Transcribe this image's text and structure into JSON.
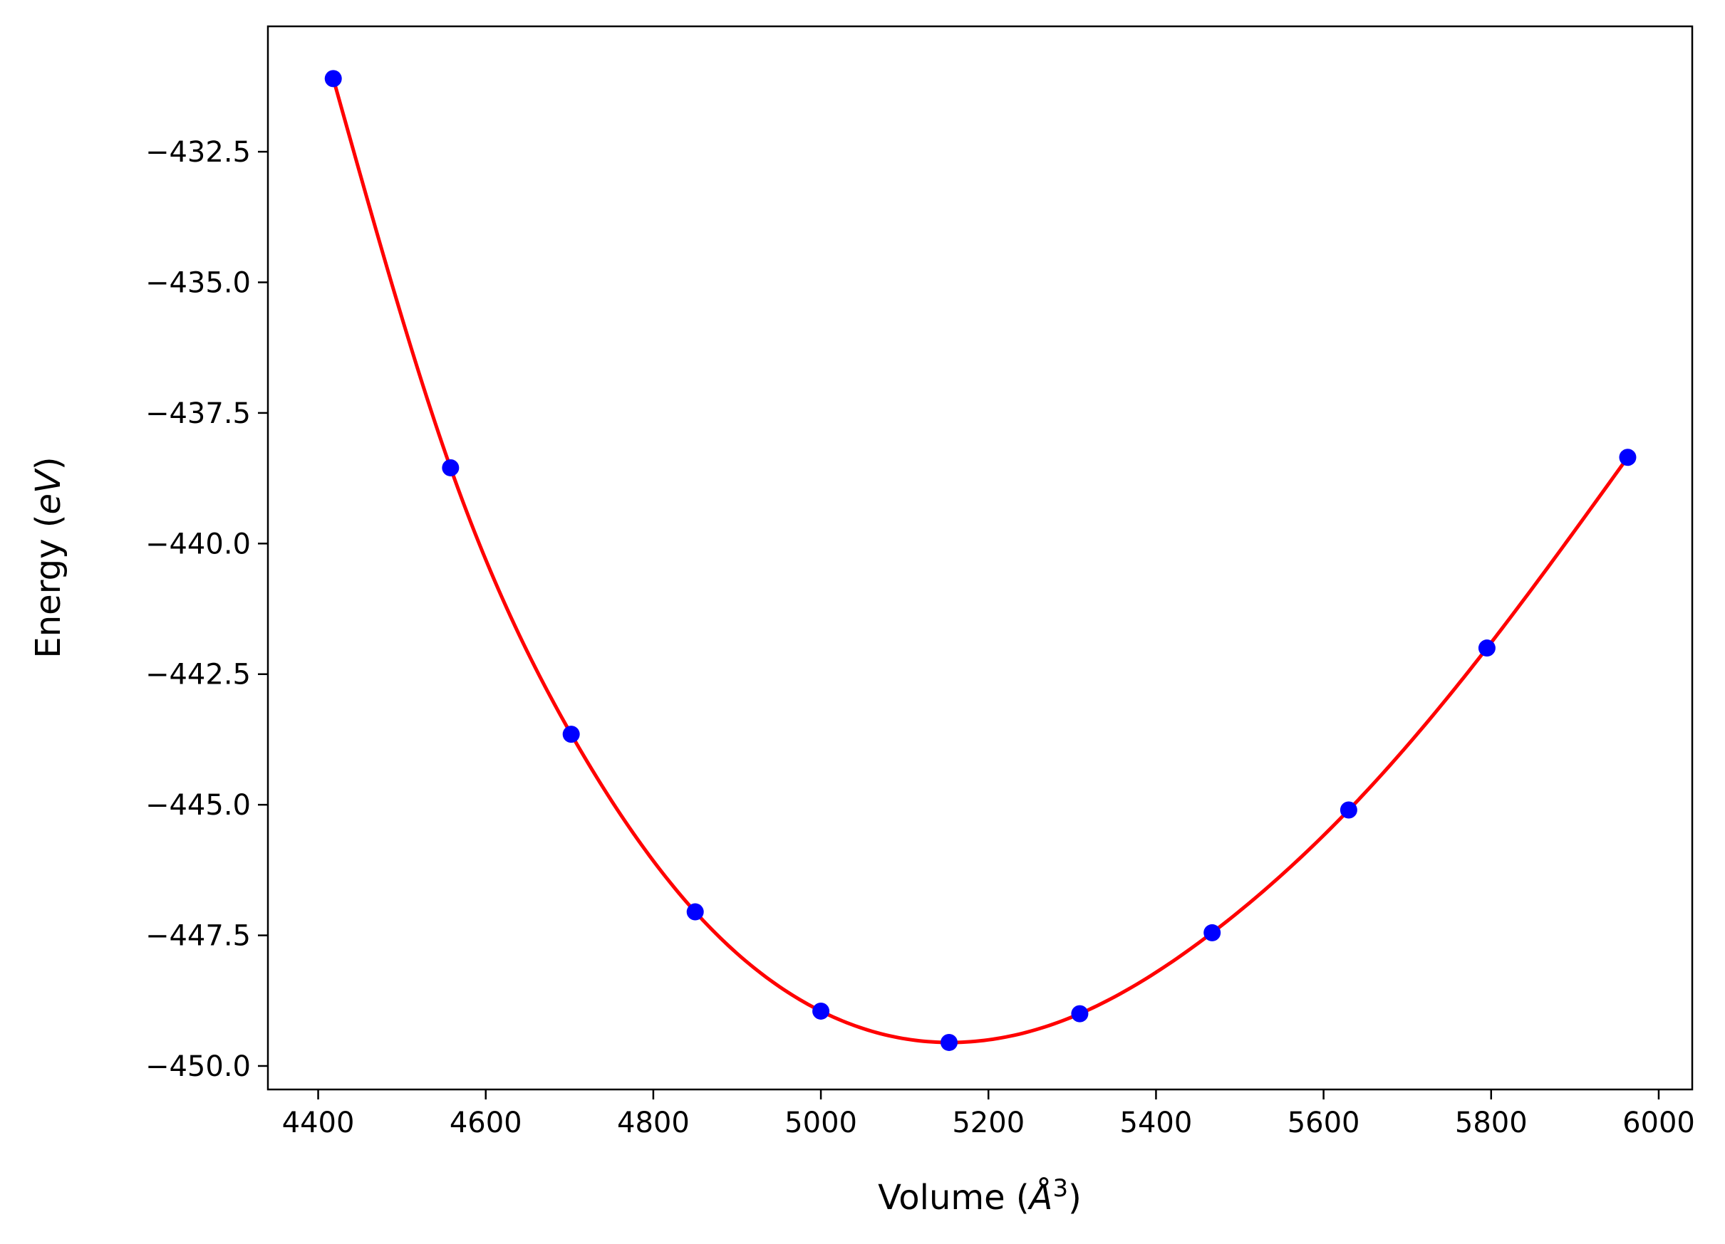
{
  "chart_data": {
    "type": "line",
    "title": "",
    "xlabel": "Volume",
    "xlabel_unit": "Å",
    "xlabel_unit_power": "3",
    "ylabel": "Energy",
    "ylabel_unit": "eV",
    "xlim": [
      4340,
      6040
    ],
    "ylim": [
      -450.45,
      -430.1
    ],
    "xticks": [
      4400,
      4600,
      4800,
      5000,
      5200,
      5400,
      5600,
      5800,
      6000
    ],
    "yticks": [
      -432.5,
      -435.0,
      -437.5,
      -440.0,
      -442.5,
      -445.0,
      -447.5,
      -450.0
    ],
    "grid": false,
    "legend": "none",
    "series": [
      {
        "kind": "markers",
        "color": "#0000ff",
        "x": [
          4418,
          4558,
          4702,
          4850,
          5000,
          5153,
          5309,
          5467,
          5630,
          5795,
          5963
        ],
        "y": [
          -431.1,
          -438.55,
          -443.65,
          -447.05,
          -448.95,
          -449.55,
          -449.0,
          -447.45,
          -445.1,
          -442.0,
          -438.35
        ]
      },
      {
        "kind": "fit-curve",
        "color": "#ff0000",
        "x": [
          4418,
          4558,
          4702,
          4850,
          5000,
          5153,
          5309,
          5467,
          5630,
          5795,
          5963
        ],
        "y": [
          -431.1,
          -438.55,
          -443.65,
          -447.05,
          -448.95,
          -449.55,
          -449.0,
          -447.45,
          -445.1,
          -442.0,
          -438.35
        ]
      }
    ]
  }
}
